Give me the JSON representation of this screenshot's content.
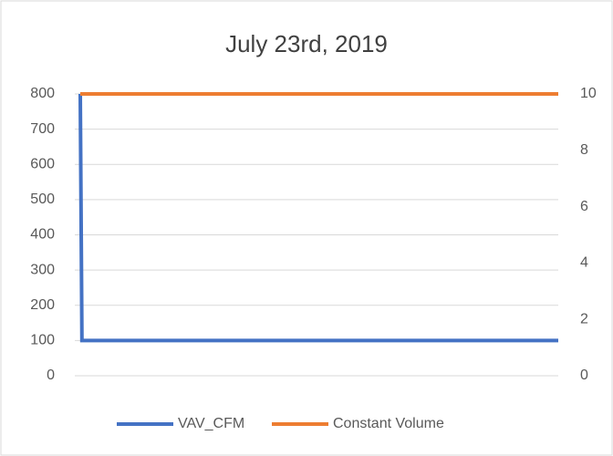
{
  "chart_data": {
    "type": "line",
    "title": "July 23rd, 2019",
    "series": [
      {
        "name": "VAV_CFM",
        "color": "#4472c4",
        "x": [
          0,
          1,
          288
        ],
        "values": [
          800,
          100,
          100
        ]
      },
      {
        "name": "Constant Volume",
        "color": "#ed7d31",
        "axis": "y2",
        "x": [
          0,
          288
        ],
        "values": [
          10,
          10
        ]
      }
    ],
    "xlim": [
      0,
      288
    ],
    "ylim": [
      0,
      800
    ],
    "yticks": [
      0,
      100,
      200,
      300,
      400,
      500,
      600,
      700,
      800
    ],
    "y2lim": [
      0,
      10
    ],
    "y2ticks": [
      0,
      2,
      4,
      6,
      8,
      10
    ],
    "grid": true,
    "legend": "bottom"
  }
}
